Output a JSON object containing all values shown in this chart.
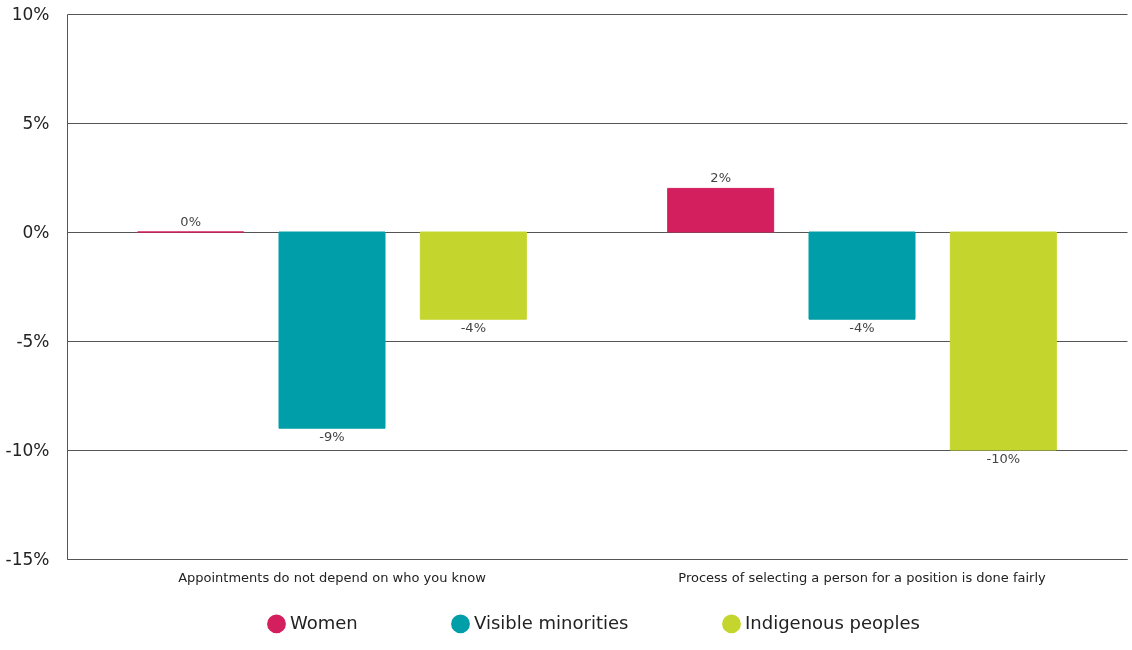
{
  "chart_data": {
    "type": "bar",
    "categories": [
      "Appointments do not depend on who you know",
      "Process of selecting a person for a position is done fairly"
    ],
    "series": [
      {
        "name": "Women",
        "color": "#d41f5e",
        "values": [
          0,
          2
        ],
        "value_labels": [
          "0%",
          "2%"
        ]
      },
      {
        "name": "Visible minorities",
        "color": "#009ea8",
        "values": [
          -9,
          -4
        ],
        "value_labels": [
          "-9%",
          "-4%"
        ]
      },
      {
        "name": "Indigenous peoples",
        "color": "#c4d62e",
        "values": [
          -4,
          -10
        ],
        "value_labels": [
          "-4%",
          "-10%"
        ]
      }
    ],
    "ylim": [
      -15,
      10
    ],
    "yticks": [
      {
        "value": -15,
        "label": "-15%"
      },
      {
        "value": -10,
        "label": "-10%"
      },
      {
        "value": -5,
        "label": "-5%"
      },
      {
        "value": 0,
        "label": "0%"
      },
      {
        "value": 5,
        "label": "5%"
      },
      {
        "value": 10,
        "label": "10%"
      }
    ],
    "grid": "y",
    "legend": "bottom"
  }
}
